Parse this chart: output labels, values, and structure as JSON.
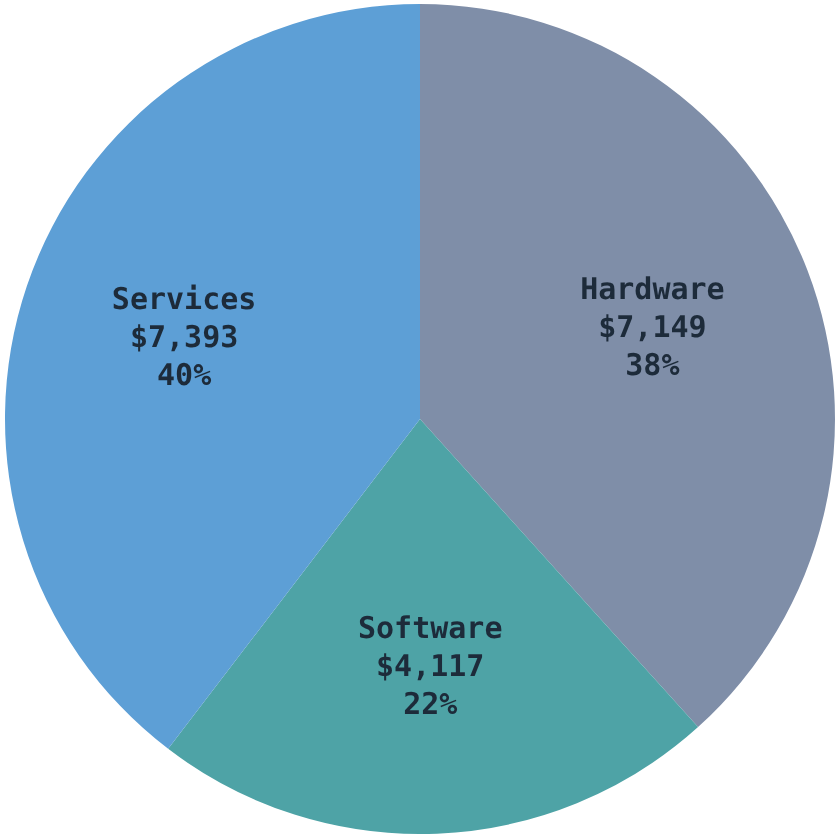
{
  "chart_data": {
    "type": "pie",
    "categories": [
      "Hardware",
      "Software",
      "Services"
    ],
    "values": [
      7149,
      4117,
      7393
    ],
    "value_labels": [
      "$7,149\n38%",
      "$4,117\n22%",
      "$7,393\n40%"
    ],
    "colors": [
      "#7f8ea8",
      "#4ea3a6",
      "#5d9fd6"
    ]
  }
}
